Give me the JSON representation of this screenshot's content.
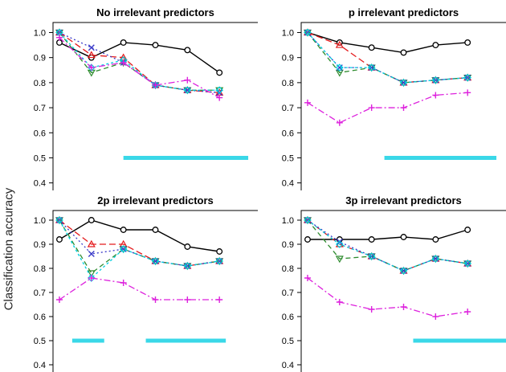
{
  "figure": {
    "ylabel": "Classification accuracy"
  },
  "chart_data": [
    {
      "type": "line",
      "title": "No irrelevant predictors",
      "ylim": [
        0.37,
        1.04
      ],
      "xlim": [
        0.8,
        7.2
      ],
      "yticks": [
        "0.4",
        "0.5",
        "0.6",
        "0.7",
        "0.8",
        "0.9",
        "1.0"
      ],
      "x": [
        1,
        2,
        3,
        4,
        5,
        6,
        7
      ],
      "series": [
        {
          "color": "#000000",
          "dash": "",
          "marker": "circle",
          "values": [
            0.96,
            0.9,
            0.96,
            0.95,
            0.93,
            0.84,
            null
          ]
        },
        {
          "color": "#e41a1c",
          "dash": "8,4",
          "marker": "triangle",
          "values": [
            1.0,
            0.91,
            0.9,
            0.79,
            0.77,
            0.76,
            null
          ]
        },
        {
          "color": "#2e8b2e",
          "dash": "6,4",
          "marker": "triangle-down",
          "values": [
            1.0,
            0.84,
            0.88,
            0.79,
            0.77,
            0.77,
            null
          ]
        },
        {
          "color": "#3a3ac8",
          "dash": "2,3",
          "marker": "x",
          "values": [
            1.0,
            0.94,
            0.88,
            0.79,
            0.77,
            0.76,
            null
          ]
        },
        {
          "color": "#00cfe0",
          "dash": "3,3",
          "marker": "diamond",
          "values": [
            1.0,
            0.86,
            0.89,
            0.79,
            0.77,
            0.77,
            null
          ]
        },
        {
          "color": "#dd22dd",
          "dash": "8,3,2,3",
          "marker": "plus",
          "values": [
            0.98,
            0.86,
            0.88,
            0.79,
            0.81,
            0.74,
            null
          ]
        }
      ],
      "bars": [
        {
          "x0": 3.0,
          "x1": 6.9,
          "y": 0.5
        }
      ]
    },
    {
      "type": "line",
      "title": "p irrelevant predictors",
      "ylim": [
        0.37,
        1.04
      ],
      "xlim": [
        0.8,
        7.2
      ],
      "yticks": [
        "0.4",
        "0.5",
        "0.6",
        "0.7",
        "0.8",
        "0.9",
        "1.0"
      ],
      "x": [
        1,
        2,
        3,
        4,
        5,
        6,
        7
      ],
      "series": [
        {
          "color": "#000000",
          "dash": "",
          "marker": "circle",
          "values": [
            1.0,
            0.96,
            0.94,
            0.92,
            0.95,
            0.96,
            null
          ]
        },
        {
          "color": "#e41a1c",
          "dash": "8,4",
          "marker": "triangle",
          "values": [
            1.0,
            0.95,
            0.86,
            0.8,
            0.81,
            0.82,
            null
          ]
        },
        {
          "color": "#2e8b2e",
          "dash": "6,4",
          "marker": "triangle-down",
          "values": [
            1.0,
            0.84,
            0.86,
            0.8,
            0.81,
            0.82,
            null
          ]
        },
        {
          "color": "#3a3ac8",
          "dash": "2,3",
          "marker": "x",
          "values": [
            1.0,
            0.86,
            0.86,
            0.8,
            0.81,
            0.82,
            null
          ]
        },
        {
          "color": "#00cfe0",
          "dash": "3,3",
          "marker": "diamond",
          "values": [
            1.0,
            0.86,
            0.86,
            0.8,
            0.81,
            0.82,
            null
          ]
        },
        {
          "color": "#dd22dd",
          "dash": "8,3,2,3",
          "marker": "plus",
          "values": [
            0.72,
            0.64,
            0.7,
            0.7,
            0.75,
            0.76,
            null
          ]
        }
      ],
      "bars": [
        {
          "x0": 3.4,
          "x1": 6.9,
          "y": 0.5
        }
      ]
    },
    {
      "type": "line",
      "title": "2p irrelevant predictors",
      "ylim": [
        0.37,
        1.04
      ],
      "xlim": [
        0.8,
        7.2
      ],
      "yticks": [
        "0.4",
        "0.5",
        "0.6",
        "0.7",
        "0.8",
        "0.9",
        "1.0"
      ],
      "x": [
        1,
        2,
        3,
        4,
        5,
        6,
        7
      ],
      "series": [
        {
          "color": "#000000",
          "dash": "",
          "marker": "circle",
          "values": [
            0.92,
            1.0,
            0.96,
            0.96,
            0.89,
            0.87,
            null
          ]
        },
        {
          "color": "#e41a1c",
          "dash": "8,4",
          "marker": "triangle",
          "values": [
            1.0,
            0.9,
            0.9,
            0.83,
            0.81,
            0.83,
            null
          ]
        },
        {
          "color": "#2e8b2e",
          "dash": "6,4",
          "marker": "triangle-down",
          "values": [
            1.0,
            0.78,
            0.88,
            0.83,
            0.81,
            0.83,
            null
          ]
        },
        {
          "color": "#3a3ac8",
          "dash": "2,3",
          "marker": "x",
          "values": [
            1.0,
            0.86,
            0.88,
            0.83,
            0.81,
            0.83,
            null
          ]
        },
        {
          "color": "#00cfe0",
          "dash": "3,3",
          "marker": "diamond",
          "values": [
            1.0,
            0.76,
            0.88,
            0.83,
            0.81,
            0.83,
            null
          ]
        },
        {
          "color": "#dd22dd",
          "dash": "8,3,2,3",
          "marker": "plus",
          "values": [
            0.67,
            0.76,
            0.74,
            0.67,
            0.67,
            0.67,
            null
          ]
        }
      ],
      "bars": [
        {
          "x0": 1.4,
          "x1": 2.4,
          "y": 0.5
        },
        {
          "x0": 3.7,
          "x1": 6.2,
          "y": 0.5
        }
      ]
    },
    {
      "type": "line",
      "title": "3p irrelevant predictors",
      "ylim": [
        0.37,
        1.04
      ],
      "xlim": [
        0.8,
        7.2
      ],
      "yticks": [
        "0.4",
        "0.5",
        "0.6",
        "0.7",
        "0.8",
        "0.9",
        "1.0"
      ],
      "x": [
        1,
        2,
        3,
        4,
        5,
        6,
        7
      ],
      "series": [
        {
          "color": "#000000",
          "dash": "",
          "marker": "circle",
          "values": [
            0.92,
            0.92,
            0.92,
            0.93,
            0.92,
            0.96,
            null
          ]
        },
        {
          "color": "#e41a1c",
          "dash": "8,4",
          "marker": "triangle",
          "values": [
            1.0,
            0.9,
            0.85,
            0.79,
            0.84,
            0.82,
            null
          ]
        },
        {
          "color": "#2e8b2e",
          "dash": "6,4",
          "marker": "triangle-down",
          "values": [
            1.0,
            0.84,
            0.85,
            0.79,
            0.84,
            0.82,
            null
          ]
        },
        {
          "color": "#3a3ac8",
          "dash": "2,3",
          "marker": "x",
          "values": [
            1.0,
            0.91,
            0.85,
            0.79,
            0.84,
            0.82,
            null
          ]
        },
        {
          "color": "#00cfe0",
          "dash": "3,3",
          "marker": "diamond",
          "values": [
            1.0,
            0.9,
            0.85,
            0.79,
            0.84,
            0.82,
            null
          ]
        },
        {
          "color": "#dd22dd",
          "dash": "8,3,2,3",
          "marker": "plus",
          "values": [
            0.76,
            0.66,
            0.63,
            0.64,
            0.6,
            0.62,
            null
          ]
        }
      ],
      "bars": [
        {
          "x0": 4.3,
          "x1": 7.2,
          "y": 0.5
        }
      ]
    }
  ]
}
